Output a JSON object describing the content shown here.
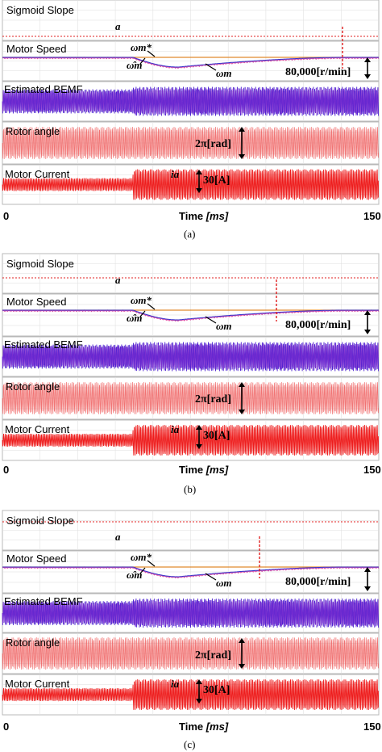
{
  "chart_data": [
    {
      "type": "line",
      "caption": "(a)",
      "x_axis": {
        "label": "Time",
        "unit": "[ms]",
        "range": [
          0,
          150
        ],
        "ticks": [
          "0",
          "150"
        ]
      },
      "panels": [
        {
          "label": "Sigmoid Slope",
          "annotation": "a",
          "slope_level": "high"
        },
        {
          "label": "Motor Speed",
          "annotations": [
            "ωm*",
            "ω̂m",
            "ωm"
          ],
          "scale": "80,000[r/min]"
        },
        {
          "label": "Estimated BEMF"
        },
        {
          "label": "Rotor angle",
          "scale": "2π[rad]"
        },
        {
          "label": "Motor Current",
          "series_label": "ia",
          "scale": "30[A]"
        }
      ],
      "colors": {
        "reference": "#e08a2e",
        "estimate": "#3333cc",
        "measured": "#d94fa8",
        "bemf": "#4b1fd1",
        "angle": "#ef5a5a",
        "current": "#ee1c1c",
        "marker": "#e02020"
      }
    },
    {
      "type": "line",
      "caption": "(b)",
      "x_axis": {
        "label": "Time",
        "unit": "[ms]",
        "range": [
          0,
          150
        ],
        "ticks": [
          "0",
          "150"
        ]
      },
      "panels": [
        {
          "label": "Sigmoid Slope",
          "annotation": "a",
          "slope_level": "mid"
        },
        {
          "label": "Motor Speed",
          "annotations": [
            "ωm*",
            "ω̂m",
            "ωm"
          ],
          "scale": "80,000[r/min]"
        },
        {
          "label": "Estimated BEMF"
        },
        {
          "label": "Rotor angle",
          "scale": "2π[rad]"
        },
        {
          "label": "Motor Current",
          "series_label": "ia",
          "scale": "30[A]"
        }
      ]
    },
    {
      "type": "line",
      "caption": "(c)",
      "x_axis": {
        "label": "Time",
        "unit": "[ms]",
        "range": [
          0,
          150
        ],
        "ticks": [
          "0",
          "150"
        ]
      },
      "panels": [
        {
          "label": "Sigmoid Slope",
          "annotation": "a",
          "slope_level": "low"
        },
        {
          "label": "Motor Speed",
          "annotations": [
            "ωm*",
            "ω̂m",
            "ωm"
          ],
          "scale": "80,000[r/min]"
        },
        {
          "label": "Estimated BEMF"
        },
        {
          "label": "Rotor angle",
          "scale": "2π[rad]"
        },
        {
          "label": "Motor Current",
          "series_label": "ia",
          "scale": "30[A]"
        }
      ]
    }
  ]
}
